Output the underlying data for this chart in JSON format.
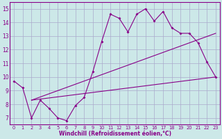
{
  "bg_color": "#cce8e8",
  "grid_color": "#aaaacc",
  "line_color": "#880088",
  "xlabel": "Windchill (Refroidissement éolien,°C)",
  "xlim": [
    -0.5,
    23.5
  ],
  "ylim": [
    6.5,
    15.5
  ],
  "yticks": [
    7,
    8,
    9,
    10,
    11,
    12,
    13,
    14,
    15
  ],
  "xticks": [
    0,
    1,
    2,
    3,
    4,
    5,
    6,
    7,
    8,
    9,
    10,
    11,
    12,
    13,
    14,
    15,
    16,
    17,
    18,
    19,
    20,
    21,
    22,
    23
  ],
  "line1_x": [
    0,
    1,
    2,
    3,
    4,
    5,
    6,
    7,
    8,
    9,
    10,
    11,
    12,
    13,
    14,
    15,
    16,
    17,
    18,
    19,
    20,
    21,
    22,
    23
  ],
  "line1_y": [
    9.7,
    9.2,
    7.0,
    8.3,
    7.7,
    7.0,
    6.8,
    7.9,
    8.5,
    10.4,
    12.6,
    14.6,
    14.3,
    13.3,
    14.6,
    15.0,
    14.1,
    14.8,
    13.6,
    13.2,
    13.2,
    12.5,
    11.1,
    10.0
  ],
  "line2_x": [
    2,
    23
  ],
  "line2_y": [
    8.3,
    10.0
  ],
  "line3_x": [
    2,
    23
  ],
  "line3_y": [
    8.3,
    13.2
  ]
}
